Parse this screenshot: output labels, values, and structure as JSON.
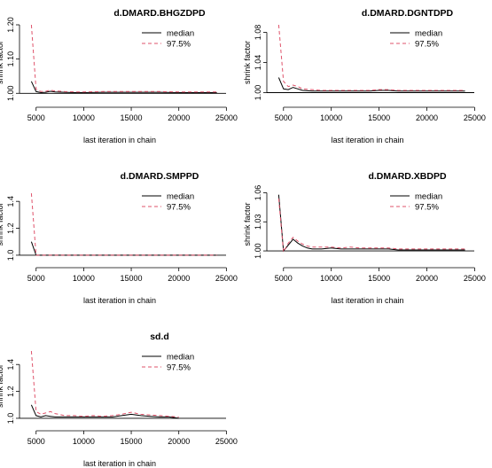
{
  "chart_data": [
    {
      "type": "line",
      "title": "d.DMARD.BHGZDPD",
      "xlabel": "last iteration in chain",
      "ylabel": "shrink factor",
      "xlim": [
        4000,
        24500
      ],
      "ylim": [
        0.98,
        1.2
      ],
      "x_ticks": [
        "5000",
        "10000",
        "15000",
        "20000",
        "25000"
      ],
      "y_ticks": [
        "1.00",
        "1.10",
        "1.20"
      ],
      "reference_line": 1,
      "legend": {
        "position": "top-right",
        "entries": [
          "median",
          "97.5%"
        ]
      },
      "series": [
        {
          "name": "median",
          "color": "#000000",
          "dash": "solid",
          "x": [
            4500,
            5000,
            5500,
            6000,
            6500,
            7000,
            8000,
            9000,
            10000,
            12000,
            14000,
            16000,
            18000,
            20000,
            22000,
            24000
          ],
          "y": [
            1.035,
            1.005,
            1.002,
            1.003,
            1.006,
            1.004,
            1.003,
            1.002,
            1.002,
            1.003,
            1.003,
            1.003,
            1.003,
            1.002,
            1.002,
            1.002
          ]
        },
        {
          "name": "97.5%",
          "color": "#df536b",
          "dash": "dashed",
          "x": [
            4500,
            5000,
            5500,
            6000,
            6500,
            7000,
            8000,
            9000,
            10000,
            12000,
            14000,
            16000,
            18000,
            20000,
            22000,
            24000
          ],
          "y": [
            1.2,
            1.012,
            1.005,
            1.006,
            1.009,
            1.007,
            1.005,
            1.004,
            1.004,
            1.005,
            1.005,
            1.005,
            1.005,
            1.004,
            1.004,
            1.004
          ]
        }
      ]
    },
    {
      "type": "line",
      "title": "d.DMARD.DGNTDPD",
      "xlabel": "last iteration in chain",
      "ylabel": "shrink factor",
      "xlim": [
        4000,
        24500
      ],
      "ylim": [
        0.99,
        1.09
      ],
      "x_ticks": [
        "5000",
        "10000",
        "15000",
        "20000",
        "25000"
      ],
      "y_ticks": [
        "1.00",
        "1.04",
        "1.08"
      ],
      "reference_line": 1,
      "legend": {
        "position": "top-right",
        "entries": [
          "median",
          "97.5%"
        ]
      },
      "series": [
        {
          "name": "median",
          "color": "#000000",
          "dash": "solid",
          "x": [
            4500,
            5000,
            5500,
            6000,
            6500,
            7000,
            8000,
            9000,
            10000,
            12000,
            14000,
            15000,
            16000,
            17000,
            18000,
            20000,
            22000,
            24000
          ],
          "y": [
            1.02,
            1.005,
            1.004,
            1.007,
            1.005,
            1.003,
            1.002,
            1.002,
            1.002,
            1.002,
            1.002,
            1.003,
            1.003,
            1.002,
            1.002,
            1.002,
            1.002,
            1.002
          ]
        },
        {
          "name": "97.5%",
          "color": "#df536b",
          "dash": "dashed",
          "x": [
            4500,
            5000,
            5500,
            6000,
            6500,
            7000,
            8000,
            9000,
            10000,
            12000,
            14000,
            15000,
            16000,
            17000,
            18000,
            20000,
            22000,
            24000
          ],
          "y": [
            1.09,
            1.015,
            1.008,
            1.01,
            1.008,
            1.005,
            1.004,
            1.003,
            1.003,
            1.003,
            1.003,
            1.004,
            1.004,
            1.003,
            1.003,
            1.003,
            1.003,
            1.003
          ]
        }
      ]
    },
    {
      "type": "line",
      "title": "d.DMARD.SMPPD",
      "xlabel": "last iteration in chain",
      "ylabel": "shrink factor",
      "xlim": [
        4000,
        24500
      ],
      "ylim": [
        0.96,
        1.5
      ],
      "x_ticks": [
        "5000",
        "10000",
        "15000",
        "20000",
        "25000"
      ],
      "y_ticks": [
        "1.0",
        "1.2",
        "1.4"
      ],
      "reference_line": 1,
      "legend": {
        "position": "top-right",
        "entries": [
          "median",
          "97.5%"
        ]
      },
      "series": [
        {
          "name": "median",
          "color": "#000000",
          "dash": "solid",
          "x": [
            4500,
            5000,
            5500,
            6000,
            7000,
            8000,
            10000,
            12000,
            14000,
            16000,
            18000,
            20000,
            22000,
            24000
          ],
          "y": [
            1.1,
            1.0,
            1.0,
            1.0,
            1.0,
            1.0,
            1.0,
            1.0,
            1.0,
            1.0,
            1.0,
            1.0,
            1.0,
            1.0
          ]
        },
        {
          "name": "97.5%",
          "color": "#df536b",
          "dash": "dashed",
          "x": [
            4500,
            5000,
            5500,
            6000,
            7000,
            8000,
            10000,
            12000,
            14000,
            16000,
            18000,
            20000,
            22000,
            24000
          ],
          "y": [
            1.46,
            1.0,
            1.0,
            1.0,
            1.0,
            1.0,
            1.0,
            1.0,
            1.0,
            1.0,
            1.0,
            1.0,
            1.0,
            1.0
          ]
        }
      ]
    },
    {
      "type": "line",
      "title": "d.DMARD.XBDPD",
      "xlabel": "last iteration in chain",
      "ylabel": "shrink factor",
      "xlim": [
        4000,
        24500
      ],
      "ylim": [
        0.99,
        1.065
      ],
      "x_ticks": [
        "5000",
        "10000",
        "15000",
        "20000",
        "25000"
      ],
      "y_ticks": [
        "1.00",
        "1.03",
        "1.06"
      ],
      "reference_line": 1,
      "legend": {
        "position": "top-right",
        "entries": [
          "median",
          "97.5%"
        ]
      },
      "series": [
        {
          "name": "median",
          "color": "#000000",
          "dash": "solid",
          "x": [
            4500,
            5000,
            5500,
            6000,
            6500,
            7000,
            7500,
            8000,
            9000,
            10000,
            11000,
            12000,
            13000,
            14000,
            15000,
            16000,
            17000,
            18000,
            20000,
            22000,
            24000
          ],
          "y": [
            1.058,
            1.0,
            1.006,
            1.012,
            1.008,
            1.005,
            1.003,
            1.002,
            1.002,
            1.003,
            1.002,
            1.002,
            1.002,
            1.002,
            1.002,
            1.002,
            1.001,
            1.001,
            1.001,
            1.001,
            1.001
          ]
        },
        {
          "name": "97.5%",
          "color": "#df536b",
          "dash": "dashed",
          "x": [
            4500,
            5000,
            5500,
            6000,
            6500,
            7000,
            7500,
            8000,
            9000,
            10000,
            11000,
            12000,
            13000,
            14000,
            15000,
            16000,
            17000,
            18000,
            20000,
            22000,
            24000
          ],
          "y": [
            1.054,
            0.999,
            1.008,
            1.014,
            1.01,
            1.007,
            1.005,
            1.004,
            1.004,
            1.004,
            1.003,
            1.004,
            1.003,
            1.003,
            1.003,
            1.003,
            1.002,
            1.002,
            1.002,
            1.002,
            1.002
          ]
        }
      ]
    },
    {
      "type": "line",
      "title": "sd.d",
      "xlabel": "last iteration in chain",
      "ylabel": "shrink factor",
      "xlim": [
        4000,
        24500
      ],
      "ylim": [
        0.96,
        1.52
      ],
      "x_ticks": [
        "5000",
        "10000",
        "15000",
        "20000",
        "25000"
      ],
      "y_ticks": [
        "1.0",
        "1.2",
        "1.4"
      ],
      "reference_line": 1,
      "legend": {
        "position": "top-right",
        "entries": [
          "median",
          "97.5%"
        ]
      },
      "series": [
        {
          "name": "median",
          "color": "#000000",
          "dash": "solid",
          "x": [
            4500,
            5000,
            5500,
            6000,
            6500,
            7000,
            8000,
            9000,
            10000,
            11000,
            12000,
            13000,
            14000,
            15000,
            16000,
            17000,
            18000,
            19000,
            20000
          ],
          "y": [
            1.1,
            1.02,
            1.01,
            1.02,
            1.015,
            1.01,
            1.01,
            1.01,
            1.01,
            1.01,
            1.01,
            1.01,
            1.02,
            1.03,
            1.02,
            1.015,
            1.01,
            1.01,
            1.0
          ]
        },
        {
          "name": "97.5%",
          "color": "#df536b",
          "dash": "dashed",
          "x": [
            4500,
            5000,
            5500,
            6000,
            6500,
            7000,
            8000,
            9000,
            10000,
            11000,
            12000,
            13000,
            14000,
            15000,
            16000,
            17000,
            18000,
            19000,
            20000
          ],
          "y": [
            1.5,
            1.05,
            1.03,
            1.04,
            1.05,
            1.035,
            1.02,
            1.02,
            1.015,
            1.02,
            1.015,
            1.02,
            1.03,
            1.045,
            1.03,
            1.025,
            1.02,
            1.015,
            1.01
          ]
        }
      ]
    }
  ]
}
